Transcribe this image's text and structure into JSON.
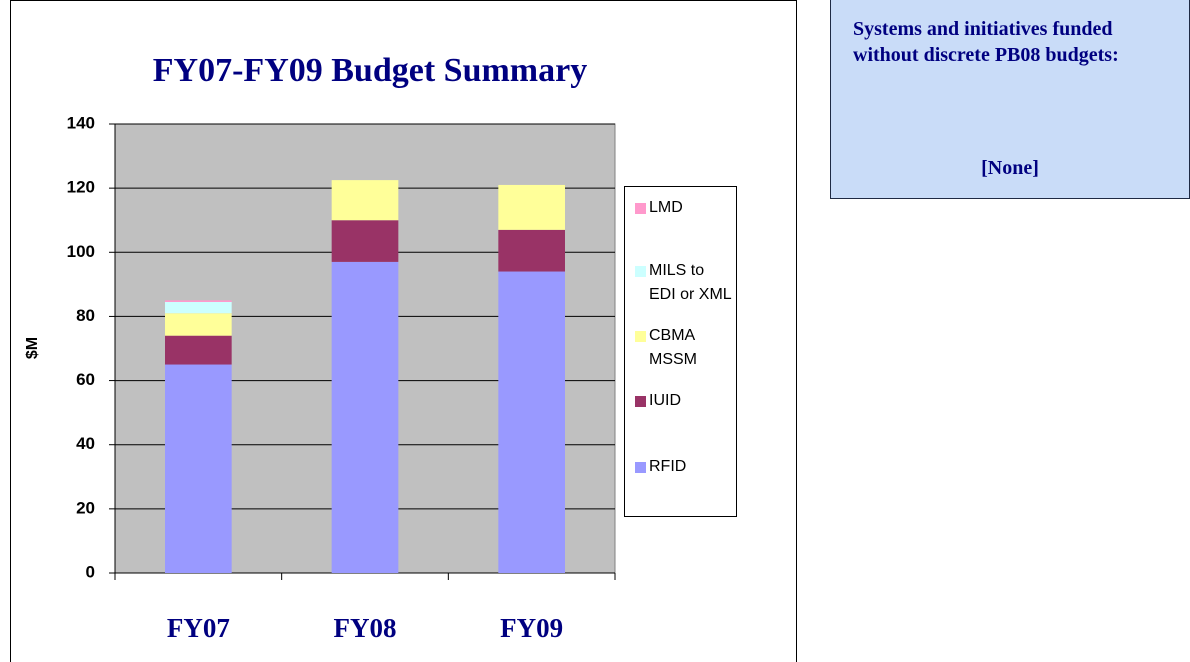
{
  "chart_data": {
    "type": "stacked_bar",
    "title": "FY07-FY09 Budget Summary",
    "y_label": "$M",
    "categories": [
      "FY07",
      "FY08",
      "FY09"
    ],
    "series": [
      {
        "name": "RFID",
        "color": "#9999ff",
        "values": [
          65,
          97,
          94
        ]
      },
      {
        "name": "IUID",
        "color": "#993366",
        "values": [
          9,
          13,
          13
        ]
      },
      {
        "name": "CBMA MSSM",
        "color": "#ffff99",
        "values": [
          7,
          12.5,
          14
        ]
      },
      {
        "name": "MILS to EDI or XML",
        "color": "#ccffff",
        "values": [
          3.5,
          0,
          0
        ]
      },
      {
        "name": "LMD",
        "color": "#ff99cc",
        "values": [
          0.5,
          0,
          0
        ]
      }
    ],
    "ylim": [
      0,
      140
    ],
    "yticks": [
      0,
      20,
      40,
      60,
      80,
      100,
      120,
      140
    ],
    "grid": true,
    "plot_color": "#c0c0c0",
    "legend": "right"
  },
  "side_note": {
    "heading": "Systems and initiatives funded without discrete PB08 budgets:",
    "value": "[None]"
  }
}
